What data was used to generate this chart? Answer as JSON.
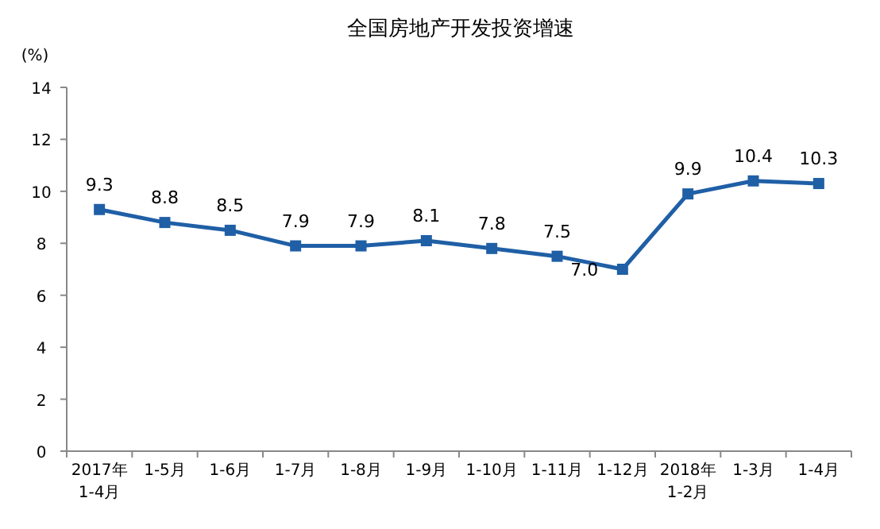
{
  "chart_data": {
    "type": "line",
    "title": "全国房地产开发投资增速",
    "ylabel": "(%)",
    "categories": [
      "2017年\n1-4月",
      "1-5月",
      "1-6月",
      "1-7月",
      "1-8月",
      "1-9月",
      "1-10月",
      "1-11月",
      "1-12月",
      "2018年\n1-2月",
      "1-3月",
      "1-4月"
    ],
    "series": [
      {
        "color": "#1f5fa6",
        "values": [
          9.3,
          8.8,
          8.5,
          7.9,
          7.9,
          8.1,
          7.8,
          7.5,
          7.0,
          9.9,
          10.4,
          10.3
        ],
        "value_labels": [
          "9.3",
          "8.8",
          "8.5",
          "7.9",
          "7.9",
          "8.1",
          "7.8",
          "7.5",
          "7.0",
          "9.9",
          "10.4",
          "10.3"
        ]
      }
    ],
    "ylim": [
      0,
      14
    ],
    "yticks": [
      0,
      2,
      4,
      6,
      8,
      10,
      12,
      14
    ],
    "marker": "square"
  }
}
